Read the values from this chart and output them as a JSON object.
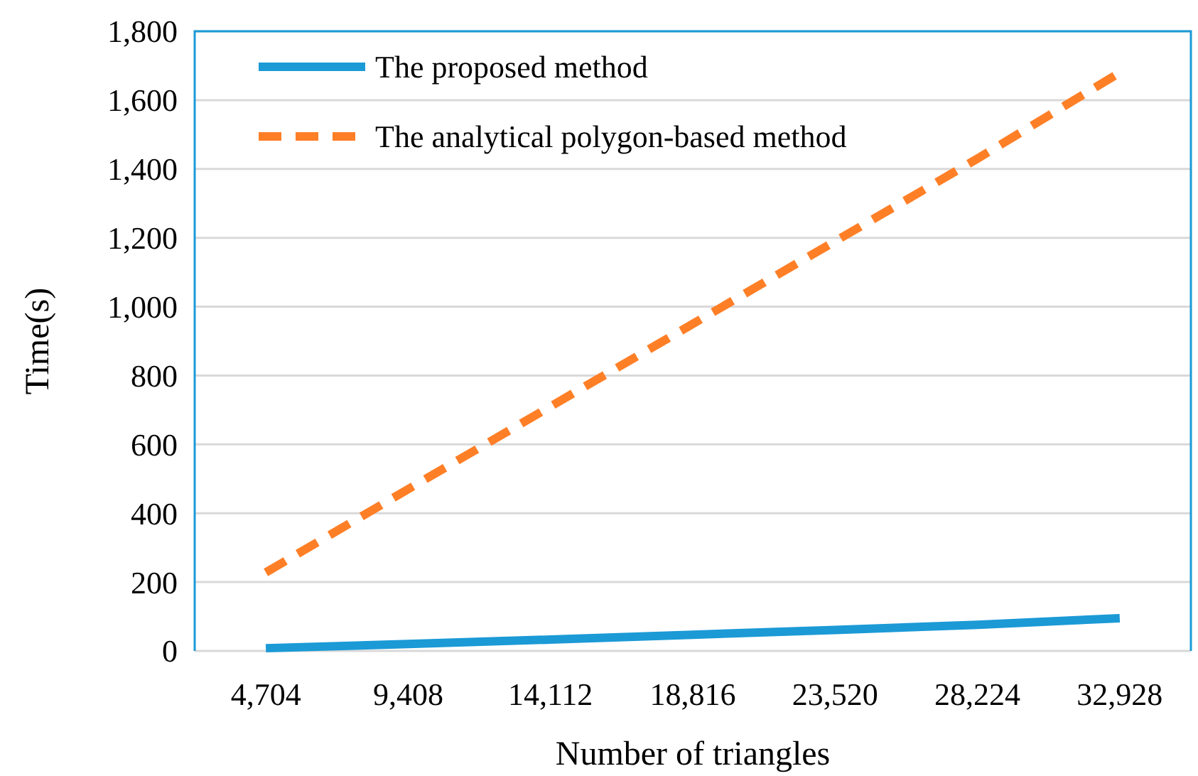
{
  "chart_data": {
    "type": "line",
    "xlabel": "Number of triangles",
    "ylabel": "Time(s)",
    "categories": [
      "4,704",
      "9,408",
      "14,112",
      "18,816",
      "23,520",
      "28,224",
      "32,928"
    ],
    "series": [
      {
        "name": "The proposed method",
        "color": "#1b9ad6",
        "line_style": "solid",
        "values": [
          8,
          20,
          33,
          47,
          61,
          76,
          95
        ]
      },
      {
        "name": "The analytical polygon-based method",
        "color": "#ff7f27",
        "line_style": "dashed",
        "values": [
          228,
          470,
          710,
          950,
          1190,
          1430,
          1680
        ]
      }
    ],
    "ylim": [
      0,
      1800
    ],
    "yticks": [
      {
        "value": 0,
        "label": "0"
      },
      {
        "value": 200,
        "label": "200"
      },
      {
        "value": 400,
        "label": "400"
      },
      {
        "value": 600,
        "label": "600"
      },
      {
        "value": 800,
        "label": "800"
      },
      {
        "value": 1000,
        "label": "1,000"
      },
      {
        "value": 1200,
        "label": "1,200"
      },
      {
        "value": 1400,
        "label": "1,400"
      },
      {
        "value": 1600,
        "label": "1,600"
      },
      {
        "value": 1800,
        "label": "1,800"
      }
    ],
    "grid": "y",
    "legend": "top left",
    "marker": "none"
  }
}
